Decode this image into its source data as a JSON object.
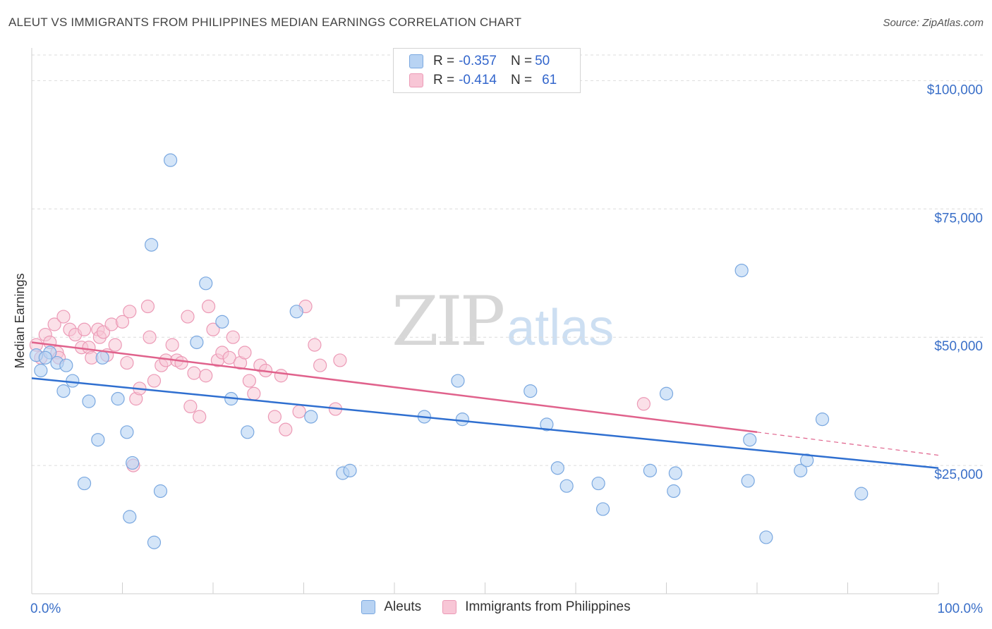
{
  "header": {
    "title": "ALEUT VS IMMIGRANTS FROM PHILIPPINES MEDIAN EARNINGS CORRELATION CHART",
    "source": "Source: ZipAtlas.com"
  },
  "watermark": {
    "zip": "ZIP",
    "atlas": "atlas"
  },
  "legend": {
    "rows": [
      {
        "r_label": "R = ",
        "r_value": "-0.357",
        "n_label": "N = ",
        "n_value": "50"
      },
      {
        "r_label": "R = ",
        "r_value": "-0.414",
        "n_label": "N = ",
        "n_value": "61"
      }
    ]
  },
  "colors": {
    "aleuts_fill": "#b8d3f3",
    "aleuts_stroke": "#7aa8e0",
    "aleuts_line": "#2f6fd0",
    "phil_fill": "#f8c6d6",
    "phil_stroke": "#ec9ab6",
    "phil_line": "#e0628c",
    "axis_text": "#3a6fc8"
  },
  "chart_data": {
    "type": "scatter",
    "title": "ALEUT VS IMMIGRANTS FROM PHILIPPINES MEDIAN EARNINGS CORRELATION CHART",
    "xlabel": "",
    "ylabel": "Median Earnings",
    "xlim": [
      0,
      100
    ],
    "ylim": [
      0,
      105000
    ],
    "x_tick_labels": [
      "0.0%",
      "100.0%"
    ],
    "y_ticks": [
      25000,
      50000,
      75000,
      100000
    ],
    "y_tick_labels": [
      "$25,000",
      "$50,000",
      "$75,000",
      "$100,000"
    ],
    "grid": true,
    "legend_position": "top-center and bottom",
    "series": [
      {
        "name": "Aleuts",
        "points": [
          [
            0.5,
            46500
          ],
          [
            1.0,
            43500
          ],
          [
            2.0,
            47000
          ],
          [
            2.8,
            45000
          ],
          [
            3.5,
            39500
          ],
          [
            3.8,
            44500
          ],
          [
            4.5,
            41500
          ],
          [
            5.8,
            21500
          ],
          [
            6.3,
            37500
          ],
          [
            7.3,
            30000
          ],
          [
            7.8,
            46000
          ],
          [
            9.5,
            38000
          ],
          [
            10.5,
            31500
          ],
          [
            10.8,
            15000
          ],
          [
            11.1,
            25500
          ],
          [
            13.2,
            68000
          ],
          [
            13.5,
            10000
          ],
          [
            14.2,
            20000
          ],
          [
            15.3,
            84500
          ],
          [
            18.2,
            49000
          ],
          [
            19.2,
            60500
          ],
          [
            21.0,
            53000
          ],
          [
            23.8,
            31500
          ],
          [
            29.2,
            55000
          ],
          [
            30.8,
            34500
          ],
          [
            34.3,
            23500
          ],
          [
            35.1,
            24000
          ],
          [
            43.3,
            34500
          ],
          [
            47.0,
            41500
          ],
          [
            55.0,
            39500
          ],
          [
            56.8,
            33000
          ],
          [
            58.0,
            24500
          ],
          [
            59.0,
            21000
          ],
          [
            62.5,
            21500
          ],
          [
            63.0,
            16500
          ],
          [
            68.2,
            24000
          ],
          [
            70.0,
            39000
          ],
          [
            70.8,
            20000
          ],
          [
            71.0,
            23500
          ],
          [
            78.3,
            63000
          ],
          [
            79.0,
            22000
          ],
          [
            79.2,
            30000
          ],
          [
            81.0,
            11000
          ],
          [
            84.8,
            24000
          ],
          [
            85.5,
            26000
          ],
          [
            87.2,
            34000
          ],
          [
            91.5,
            19500
          ],
          [
            1.5,
            46000
          ],
          [
            22.0,
            38000
          ],
          [
            47.5,
            34000
          ]
        ],
        "trend": {
          "x": [
            0,
            100
          ],
          "y": [
            42000,
            24500
          ]
        }
      },
      {
        "name": "Immigrants from Philippines",
        "points": [
          [
            0.5,
            48500
          ],
          [
            1.0,
            46000
          ],
          [
            1.5,
            50500
          ],
          [
            2.0,
            49000
          ],
          [
            2.5,
            52500
          ],
          [
            2.8,
            47000
          ],
          [
            3.0,
            46000
          ],
          [
            3.5,
            54000
          ],
          [
            4.2,
            51500
          ],
          [
            4.8,
            50500
          ],
          [
            5.5,
            48000
          ],
          [
            5.8,
            51500
          ],
          [
            6.3,
            48000
          ],
          [
            6.6,
            46000
          ],
          [
            7.3,
            51500
          ],
          [
            7.5,
            50000
          ],
          [
            7.9,
            51000
          ],
          [
            8.3,
            46500
          ],
          [
            8.8,
            52500
          ],
          [
            9.2,
            48500
          ],
          [
            10.0,
            53000
          ],
          [
            10.5,
            45000
          ],
          [
            10.8,
            55000
          ],
          [
            11.2,
            25000
          ],
          [
            11.5,
            38000
          ],
          [
            11.9,
            40000
          ],
          [
            12.8,
            56000
          ],
          [
            13.0,
            50000
          ],
          [
            13.5,
            41500
          ],
          [
            14.3,
            44500
          ],
          [
            14.8,
            45500
          ],
          [
            15.5,
            48500
          ],
          [
            16.0,
            45500
          ],
          [
            16.5,
            45000
          ],
          [
            17.2,
            54000
          ],
          [
            17.5,
            36500
          ],
          [
            17.9,
            43000
          ],
          [
            18.5,
            34500
          ],
          [
            19.2,
            42500
          ],
          [
            19.5,
            56000
          ],
          [
            20.0,
            51500
          ],
          [
            20.5,
            45500
          ],
          [
            21.0,
            47000
          ],
          [
            21.8,
            46000
          ],
          [
            22.2,
            50000
          ],
          [
            23.0,
            45000
          ],
          [
            23.5,
            47000
          ],
          [
            24.0,
            41500
          ],
          [
            24.5,
            39000
          ],
          [
            25.2,
            44500
          ],
          [
            25.8,
            43500
          ],
          [
            26.8,
            34500
          ],
          [
            27.5,
            42500
          ],
          [
            28.0,
            32000
          ],
          [
            29.5,
            35500
          ],
          [
            30.2,
            56000
          ],
          [
            31.2,
            48500
          ],
          [
            31.8,
            44500
          ],
          [
            33.5,
            36000
          ],
          [
            34.0,
            45500
          ],
          [
            67.5,
            37000
          ]
        ],
        "trend": {
          "x": [
            0,
            80
          ],
          "y": [
            49000,
            31500
          ]
        },
        "trend_dashed": {
          "x": [
            80,
            100
          ],
          "y": [
            31500,
            27000
          ]
        }
      }
    ]
  },
  "bottom_legend": {
    "items": [
      "Aleuts",
      "Immigrants from Philippines"
    ]
  }
}
